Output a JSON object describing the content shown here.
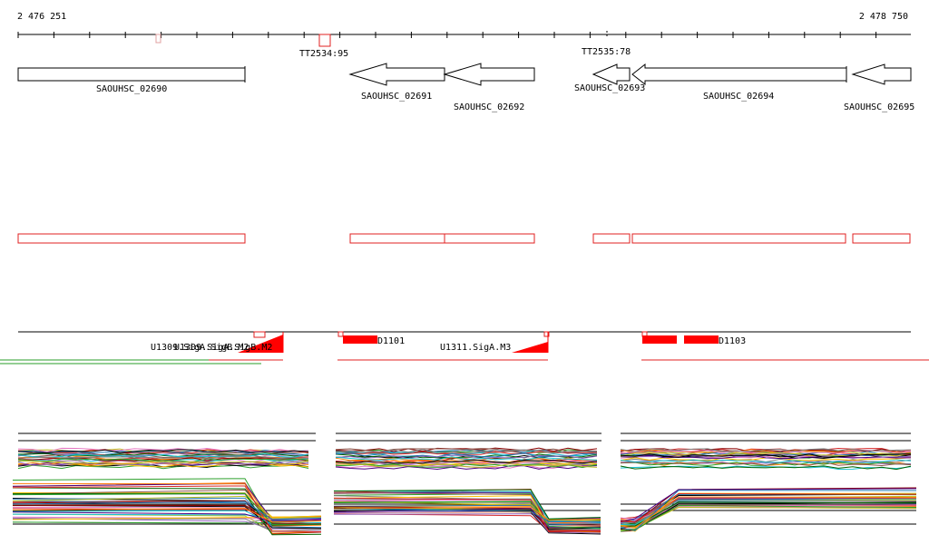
{
  "coordinates": {
    "start_label": "2 476 251",
    "end_label": "2 478 750"
  },
  "terminators": [
    {
      "label": "TT2534:95"
    },
    {
      "label": "TT2535:78"
    }
  ],
  "genes": [
    {
      "label": "SAOUHSC_02690",
      "strand": "+"
    },
    {
      "label": "SAOUHSC_02691",
      "strand": "-"
    },
    {
      "label": "SAOUHSC_02692",
      "strand": "-"
    },
    {
      "label": "SAOUHSC_02693",
      "strand": "-"
    },
    {
      "label": "SAOUHSC_02694",
      "strand": "-"
    },
    {
      "label": "SAOUHSC_02695",
      "strand": "-"
    }
  ],
  "transcription_units": [
    {
      "label": "U1309.SigA.SigB.M2"
    },
    {
      "label": "D1101"
    },
    {
      "label": "U1311.SigA.M3"
    },
    {
      "label": "D1103"
    }
  ],
  "colors": {
    "gene_outline": "#000000",
    "region_outline": "#e02020",
    "feature_fill": "#ff0000",
    "axis": "#000000",
    "green_track": "#2a9d2a"
  }
}
